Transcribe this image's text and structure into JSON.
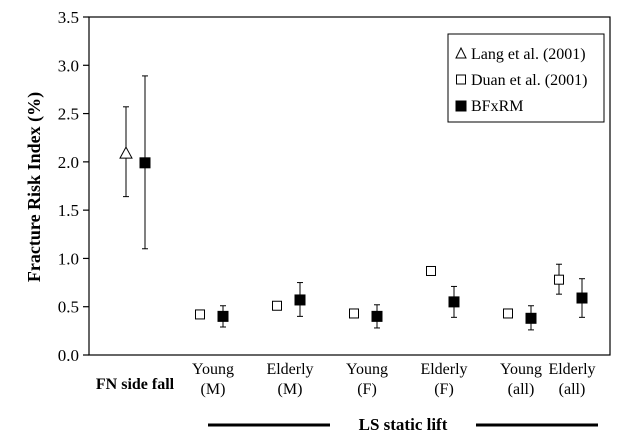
{
  "chart_data": {
    "type": "scatter",
    "ylabel": "Fracture Risk Index (%)",
    "ylim": [
      0.0,
      3.5
    ],
    "yticks": [
      "0.0",
      "0.5",
      "1.0",
      "1.5",
      "2.0",
      "2.5",
      "3.0",
      "3.5"
    ],
    "grid": false,
    "legend_position": "top-right",
    "categories": [
      {
        "lines": [
          "FN side fall"
        ],
        "bold": true
      },
      {
        "lines": [
          "Young",
          "(M)"
        ]
      },
      {
        "lines": [
          "Elderly",
          "(M)"
        ]
      },
      {
        "lines": [
          "Young",
          "(F)"
        ]
      },
      {
        "lines": [
          "Elderly",
          "(F)"
        ]
      },
      {
        "lines": [
          "Young",
          "(all)"
        ]
      },
      {
        "lines": [
          "Elderly",
          "(all)"
        ]
      }
    ],
    "group_label": "LS static lift",
    "series": [
      {
        "name": "Lang et al. (2001)",
        "marker": "open-triangle",
        "points": [
          {
            "category": 0,
            "y": 2.09,
            "err_low": 1.64,
            "err_high": 2.57
          }
        ]
      },
      {
        "name": "Duan et al. (2001)",
        "marker": "open-square",
        "points": [
          {
            "category": 1,
            "y": 0.42
          },
          {
            "category": 2,
            "y": 0.51
          },
          {
            "category": 3,
            "y": 0.43
          },
          {
            "category": 4,
            "y": 0.87
          },
          {
            "category": 5,
            "y": 0.43
          },
          {
            "category": 6,
            "y": 0.78,
            "err_low": 0.63,
            "err_high": 0.94
          }
        ]
      },
      {
        "name": "BFxRM",
        "marker": "filled-square",
        "points": [
          {
            "category": 0,
            "y": 1.99,
            "err_low": 1.1,
            "err_high": 2.89
          },
          {
            "category": 1,
            "y": 0.4,
            "err_low": 0.29,
            "err_high": 0.51
          },
          {
            "category": 2,
            "y": 0.57,
            "err_low": 0.4,
            "err_high": 0.75
          },
          {
            "category": 3,
            "y": 0.4,
            "err_low": 0.28,
            "err_high": 0.52
          },
          {
            "category": 4,
            "y": 0.55,
            "err_low": 0.39,
            "err_high": 0.71
          },
          {
            "category": 5,
            "y": 0.38,
            "err_low": 0.26,
            "err_high": 0.51
          },
          {
            "category": 6,
            "y": 0.59,
            "err_low": 0.39,
            "err_high": 0.79
          }
        ]
      }
    ]
  }
}
